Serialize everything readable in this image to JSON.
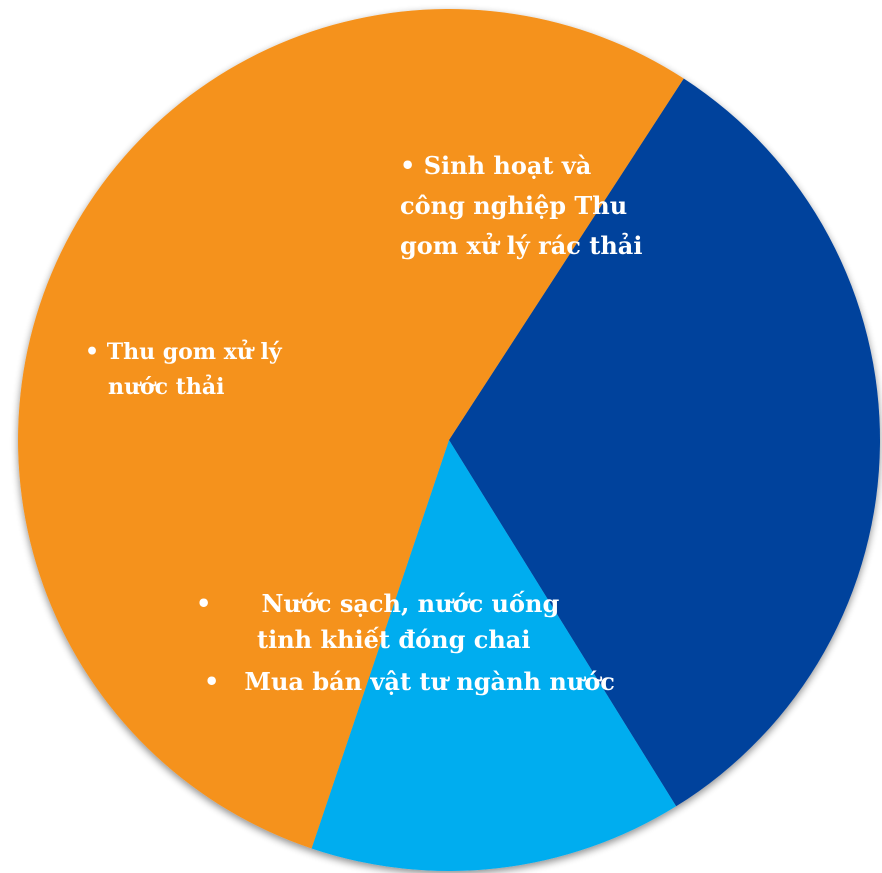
{
  "chart_data": {
    "type": "pie",
    "title": "",
    "slices": [
      {
        "label_lines": [
          "• Sinh hoạt và",
          "công nghiệp Thu",
          "gom xử lý rác thải"
        ],
        "value": 32,
        "color": "#03429C"
      },
      {
        "label_lines": [
          "• Thu gom xử lý",
          "nước thải"
        ],
        "value": 14,
        "color": "#00ADEF"
      },
      {
        "label_lines": [
          "•      Nước sạch, nước uống",
          "tinh khiết đóng chai",
          "•   Mua bán vật tư ngành nước"
        ],
        "value": 54,
        "color": "#F5921E"
      }
    ],
    "start_angle_deg": 303,
    "grid": false,
    "legend": "none"
  }
}
